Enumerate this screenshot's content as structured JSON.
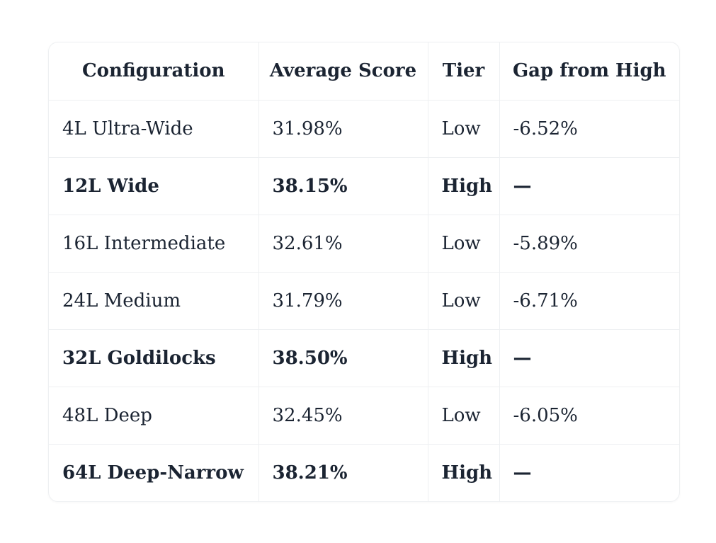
{
  "chart_data": {
    "type": "table",
    "columns": [
      "Configuration",
      "Average Score",
      "Tier",
      "Gap from High"
    ],
    "rows": [
      [
        "4L Ultra-Wide",
        "31.98%",
        "Low",
        "-6.52%"
      ],
      [
        "12L Wide",
        "38.15%",
        "High",
        "—"
      ],
      [
        "16L Intermediate",
        "32.61%",
        "Low",
        "-5.89%"
      ],
      [
        "24L Medium",
        "31.79%",
        "Low",
        "-6.71%"
      ],
      [
        "32L Goldilocks",
        "38.50%",
        "High",
        "—"
      ],
      [
        "48L Deep",
        "32.45%",
        "Low",
        "-6.05%"
      ],
      [
        "64L Deep-Narrow",
        "38.21%",
        "High",
        "—"
      ]
    ],
    "bold_row_indexes": [
      1,
      4,
      6
    ],
    "average_score_values_pct": [
      31.98,
      38.15,
      32.61,
      31.79,
      38.5,
      32.45,
      38.21
    ],
    "gap_from_high_pct": [
      -6.52,
      null,
      -5.89,
      -6.71,
      null,
      -6.05,
      null
    ],
    "tiers": [
      "Low",
      "High",
      "Low",
      "Low",
      "High",
      "Low",
      "High"
    ],
    "no_gap_placeholder": "—",
    "legend_position": "none",
    "grid": true
  },
  "colors": {
    "text": "#1b2432",
    "border": "#eef0f2",
    "card_background": "#ffffff",
    "page_background": "#ffffff"
  }
}
